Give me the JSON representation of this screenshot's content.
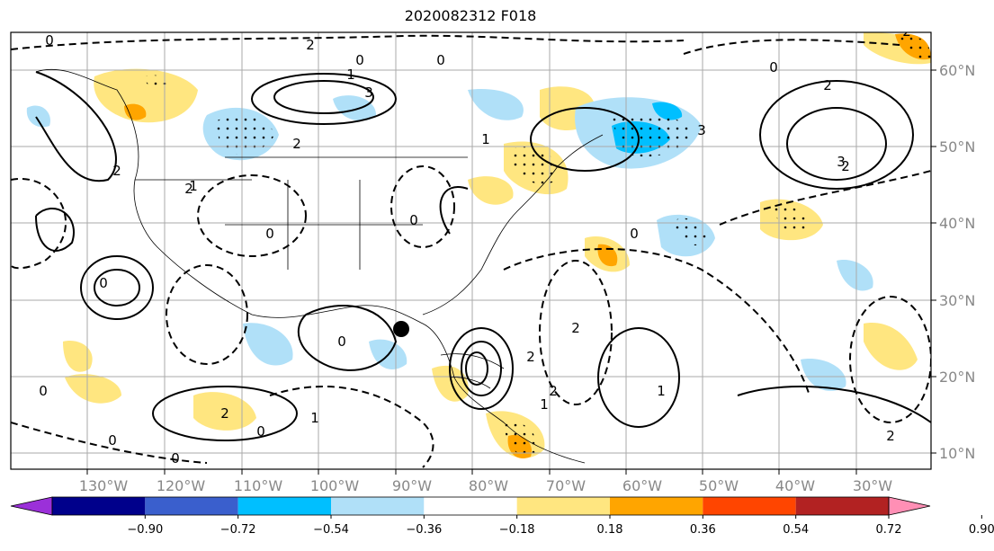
{
  "title": "2020082312 F018",
  "map": {
    "lon_labels": [
      "130°W",
      "120°W",
      "110°W",
      "100°W",
      "90°W",
      "80°W",
      "70°W",
      "60°W",
      "50°W",
      "40°W",
      "30°W"
    ],
    "lat_labels": [
      "60°N",
      "50°N",
      "40°N",
      "30°N",
      "20°N",
      "10°N"
    ],
    "contour_labels": [
      "0",
      "2",
      "0",
      "1",
      "3",
      "2",
      "0",
      "1",
      "2",
      "2",
      "0",
      "0",
      "2",
      "1",
      "2",
      "0",
      "0",
      "2",
      "2",
      "0",
      "1",
      "2",
      "1",
      "1",
      "0",
      "0",
      "2",
      "0",
      "2",
      "3",
      "0",
      "2",
      "3",
      "0"
    ],
    "marker": "storm-center-dot"
  },
  "colorbar": {
    "ticks": [
      "−0.90",
      "−0.72",
      "−0.54",
      "−0.36",
      "−0.18",
      "0.18",
      "0.36",
      "0.54",
      "0.72",
      "0.90"
    ],
    "colors": [
      "#9b30d9",
      "#00008b",
      "#3a5fcd",
      "#00bfff",
      "#b0e0f8",
      "#ffffff",
      "#ffe680",
      "#ffa500",
      "#ff4500",
      "#b22222",
      "#ff8fb5"
    ]
  }
}
